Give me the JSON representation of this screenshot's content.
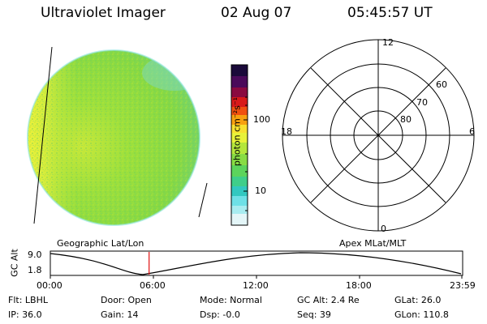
{
  "header": {
    "title": "Ultraviolet Imager",
    "date": "02 Aug 07",
    "time": "05:45:57 UT"
  },
  "colorbar": {
    "label": "photon cm⁻²s⁻¹",
    "ticks": [
      "100",
      "10"
    ]
  },
  "polar": {
    "mlt_labels": {
      "top": "12",
      "left": "18",
      "right": "6",
      "bottom": "0"
    },
    "lat_labels": [
      "60",
      "70",
      "80"
    ]
  },
  "timeline": {
    "left_label": "Geographic Lat/Lon",
    "right_label": "Apex MLat/MLT",
    "y_axis_label": "GC Alt",
    "y_ticks": [
      "9.0",
      "1.8"
    ],
    "x_ticks": [
      "00:00",
      "06:00",
      "12:00",
      "18:00",
      "23:59"
    ],
    "current_time_fraction": 0.24
  },
  "info": {
    "row1": {
      "filter": "Flt: LBHL",
      "door": "Door: Open",
      "mode": "Mode: Normal",
      "gc_alt": "GC Alt: 2.4 Re",
      "glat": "GLat:  26.0"
    },
    "row2": {
      "ip": "IP: 36.0",
      "gain": "Gain: 14",
      "dsp": "Dsp:   -0.0",
      "seq": "Seq: 39",
      "glon": "GLon: 110.8"
    }
  },
  "colors": {
    "disk_main": "#8fdc3c",
    "disk_bright": "#d6ee3a",
    "disk_edge": "#5ed6c2",
    "marker": "#e01010"
  }
}
